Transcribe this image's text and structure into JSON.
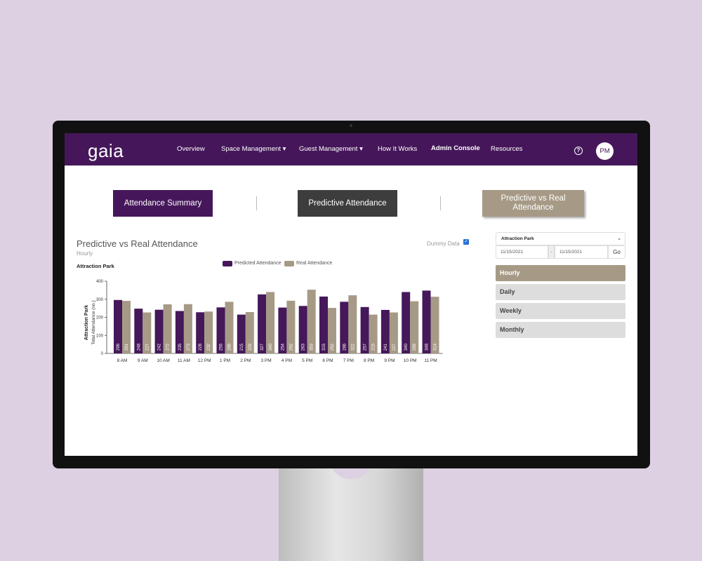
{
  "nav": {
    "logo": "gaia",
    "items": [
      "Overview",
      "Space Management ▾",
      "Guest Management ▾",
      "How It Works",
      "Admin Console",
      "Resources"
    ],
    "help": "?",
    "avatar": "PM"
  },
  "tabs": [
    "Attendance Summary",
    "Predictive Attendance",
    "Predictive vs Real Attendance"
  ],
  "panel": {
    "title": "Predictive vs Real Attendance",
    "subtitle": "Hourly",
    "dummy_label": "Dummy Data",
    "dummy_checked": true,
    "park_label": "Attraction Park"
  },
  "filters": {
    "location": "Attraction Park",
    "date_from": "11/15/2021",
    "date_sep": "-",
    "date_to": "11/15/2021",
    "go": "Go",
    "options": [
      "Hourly",
      "Daily",
      "Weekly",
      "Monthly"
    ],
    "selected": "Hourly"
  },
  "colors": {
    "predicted": "#45185a",
    "real": "#a69a86",
    "brand": "#45175a"
  },
  "chart_data": {
    "type": "bar",
    "categories": [
      "8 AM",
      "9 AM",
      "10 AM",
      "11 AM",
      "12 PM",
      "1 PM",
      "2 PM",
      "3 PM",
      "4 PM",
      "5 PM",
      "6 PM",
      "7 PM",
      "8 PM",
      "9 PM",
      "10 PM",
      "11 PM"
    ],
    "series": [
      {
        "name": "Predicted Attendance",
        "values": [
          296,
          248,
          242,
          235,
          228,
          255,
          215,
          327,
          254,
          263,
          315,
          286,
          257,
          241,
          340,
          348
        ]
      },
      {
        "name": "Real Attendance",
        "values": [
          291,
          227,
          272,
          273,
          232,
          286,
          229,
          340,
          292,
          353,
          252,
          322,
          215,
          227,
          289,
          314
        ]
      }
    ],
    "ylabel": "Attraction Park",
    "ylabel2": "Total Attendance (no.)",
    "ylim": [
      0,
      400
    ],
    "yticks": [
      0,
      100,
      200,
      300,
      400
    ],
    "legend": "top-center"
  }
}
